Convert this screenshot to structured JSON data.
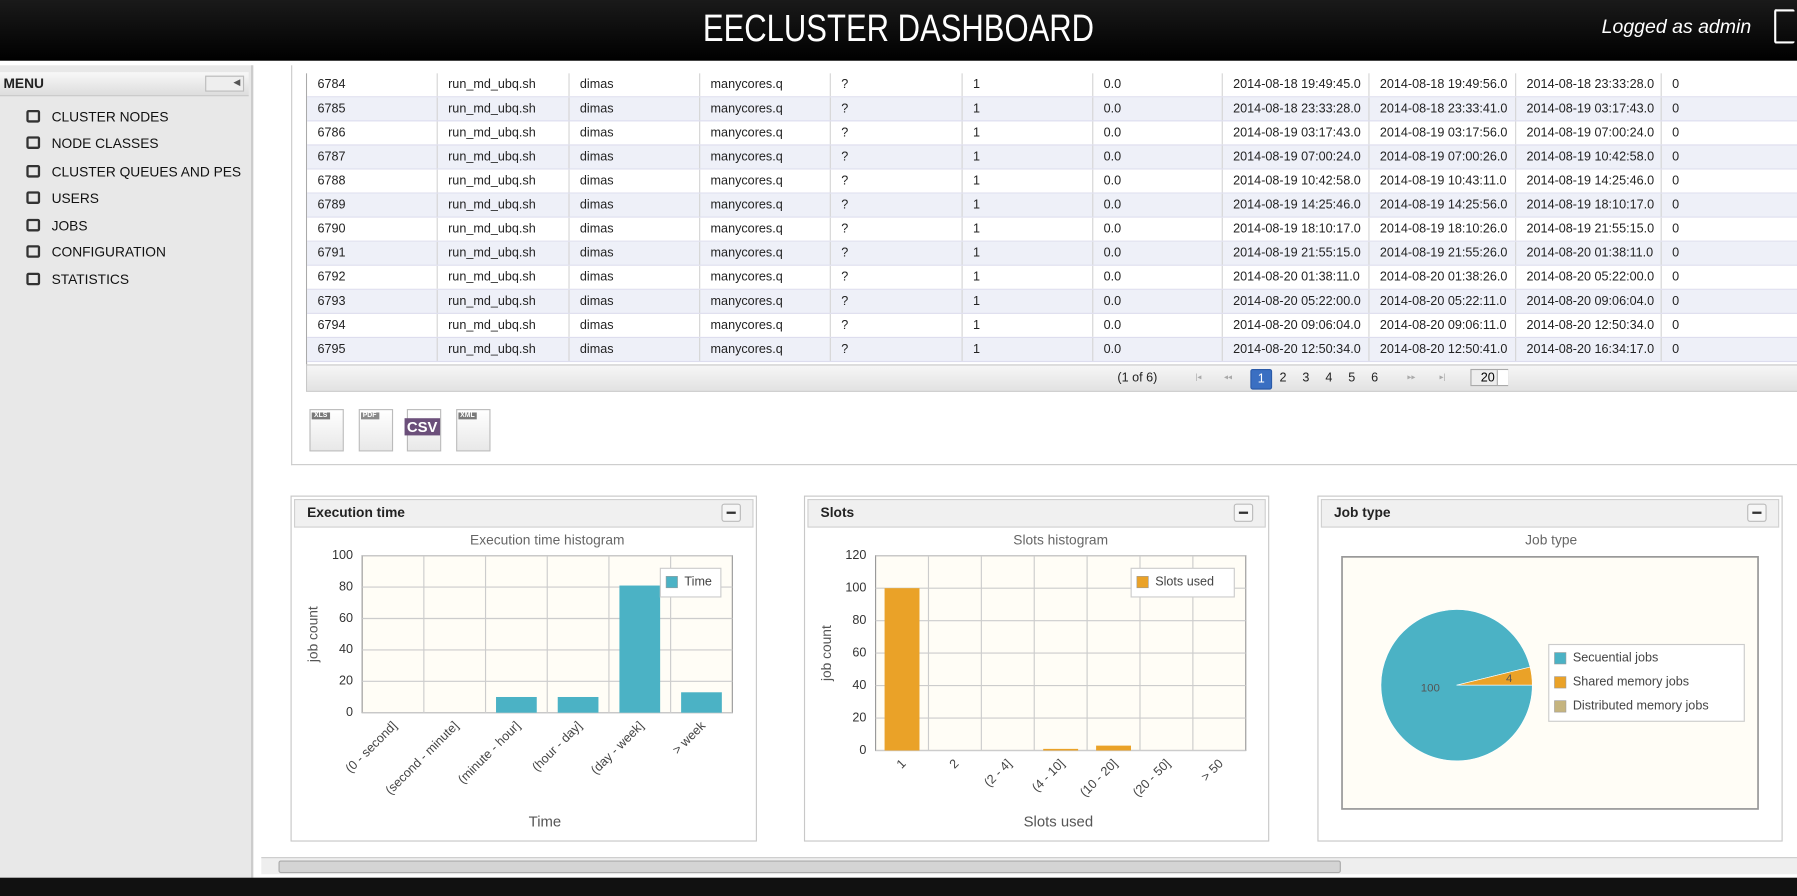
{
  "header": {
    "title": "EECLUSTER DASHBOARD",
    "user": "Logged as admin"
  },
  "menu": {
    "title": "MENU",
    "items": [
      "CLUSTER NODES",
      "NODE CLASSES",
      "CLUSTER QUEUES AND PES",
      "USERS",
      "JOBS",
      "CONFIGURATION",
      "STATISTICS"
    ]
  },
  "table": {
    "rows": [
      [
        "6784",
        "run_md_ubq.sh",
        "dimas",
        "manycores.q",
        "?",
        "1",
        "0.0",
        "2014-08-18 19:49:45.0",
        "2014-08-18 19:49:56.0",
        "2014-08-18 23:33:28.0",
        "0"
      ],
      [
        "6785",
        "run_md_ubq.sh",
        "dimas",
        "manycores.q",
        "?",
        "1",
        "0.0",
        "2014-08-18 23:33:28.0",
        "2014-08-18 23:33:41.0",
        "2014-08-19 03:17:43.0",
        "0"
      ],
      [
        "6786",
        "run_md_ubq.sh",
        "dimas",
        "manycores.q",
        "?",
        "1",
        "0.0",
        "2014-08-19 03:17:43.0",
        "2014-08-19 03:17:56.0",
        "2014-08-19 07:00:24.0",
        "0"
      ],
      [
        "6787",
        "run_md_ubq.sh",
        "dimas",
        "manycores.q",
        "?",
        "1",
        "0.0",
        "2014-08-19 07:00:24.0",
        "2014-08-19 07:00:26.0",
        "2014-08-19 10:42:58.0",
        "0"
      ],
      [
        "6788",
        "run_md_ubq.sh",
        "dimas",
        "manycores.q",
        "?",
        "1",
        "0.0",
        "2014-08-19 10:42:58.0",
        "2014-08-19 10:43:11.0",
        "2014-08-19 14:25:46.0",
        "0"
      ],
      [
        "6789",
        "run_md_ubq.sh",
        "dimas",
        "manycores.q",
        "?",
        "1",
        "0.0",
        "2014-08-19 14:25:46.0",
        "2014-08-19 14:25:56.0",
        "2014-08-19 18:10:17.0",
        "0"
      ],
      [
        "6790",
        "run_md_ubq.sh",
        "dimas",
        "manycores.q",
        "?",
        "1",
        "0.0",
        "2014-08-19 18:10:17.0",
        "2014-08-19 18:10:26.0",
        "2014-08-19 21:55:15.0",
        "0"
      ],
      [
        "6791",
        "run_md_ubq.sh",
        "dimas",
        "manycores.q",
        "?",
        "1",
        "0.0",
        "2014-08-19 21:55:15.0",
        "2014-08-19 21:55:26.0",
        "2014-08-20 01:38:11.0",
        "0"
      ],
      [
        "6792",
        "run_md_ubq.sh",
        "dimas",
        "manycores.q",
        "?",
        "1",
        "0.0",
        "2014-08-20 01:38:11.0",
        "2014-08-20 01:38:26.0",
        "2014-08-20 05:22:00.0",
        "0"
      ],
      [
        "6793",
        "run_md_ubq.sh",
        "dimas",
        "manycores.q",
        "?",
        "1",
        "0.0",
        "2014-08-20 05:22:00.0",
        "2014-08-20 05:22:11.0",
        "2014-08-20 09:06:04.0",
        "0"
      ],
      [
        "6794",
        "run_md_ubq.sh",
        "dimas",
        "manycores.q",
        "?",
        "1",
        "0.0",
        "2014-08-20 09:06:04.0",
        "2014-08-20 09:06:11.0",
        "2014-08-20 12:50:34.0",
        "0"
      ],
      [
        "6795",
        "run_md_ubq.sh",
        "dimas",
        "manycores.q",
        "?",
        "1",
        "0.0",
        "2014-08-20 12:50:34.0",
        "2014-08-20 12:50:41.0",
        "2014-08-20 16:34:17.0",
        "0"
      ]
    ]
  },
  "pagination": {
    "status": "(1 of 6)",
    "pages": [
      "1",
      "2",
      "3",
      "4",
      "5",
      "6"
    ],
    "page_size": "20"
  },
  "exports": [
    "XLS",
    "PDF",
    "CSV",
    "XML"
  ],
  "chart_data": [
    {
      "type": "bar",
      "panel_title": "Execution time",
      "title": "Execution time histogram",
      "x_label": "Time",
      "y_label": "job count",
      "categories": [
        "(0 - second]",
        "(second - minute]",
        "(minute - hour]",
        "(hour - day]",
        "(day - week]",
        "> week"
      ],
      "series": [
        {
          "name": "Time",
          "color": "#4bb2c5",
          "values": [
            0,
            0,
            10,
            10,
            81,
            13
          ]
        }
      ],
      "ylim": [
        0,
        100
      ],
      "yticks": [
        0,
        20,
        40,
        60,
        80,
        100
      ],
      "grid": true,
      "legend": "ne"
    },
    {
      "type": "bar",
      "panel_title": "Slots",
      "title": "Slots histogram",
      "x_label": "Slots used",
      "y_label": "job count",
      "categories": [
        "1",
        "2",
        "(2 - 4]",
        "(4 - 10]",
        "(10 - 20]",
        "(20 - 50]",
        "> 50"
      ],
      "series": [
        {
          "name": "Slots used",
          "color": "#eaa228",
          "values": [
            100,
            0,
            0,
            1,
            3,
            0,
            0
          ]
        }
      ],
      "ylim": [
        0,
        120
      ],
      "yticks": [
        0,
        20,
        40,
        60,
        80,
        100,
        120
      ],
      "grid": true,
      "legend": "ne"
    },
    {
      "type": "pie",
      "panel_title": "Job type",
      "title": "Job type",
      "categories": [
        "Secuential jobs",
        "Shared memory jobs",
        "Distributed memory jobs"
      ],
      "values": [
        100,
        4,
        0
      ],
      "colors": [
        "#4bb2c5",
        "#eaa228",
        "#c5b47f"
      ],
      "legend": "e"
    }
  ]
}
